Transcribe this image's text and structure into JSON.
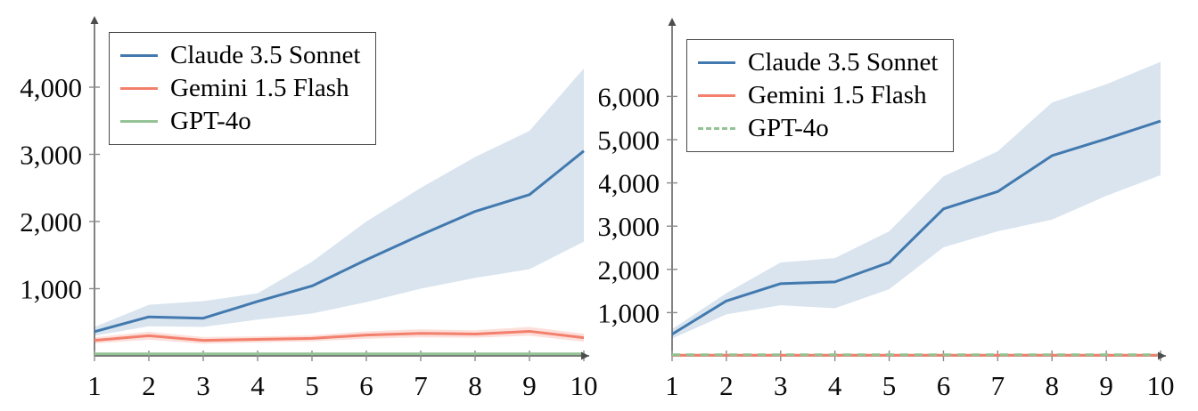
{
  "chart_data": [
    {
      "type": "line",
      "title": "",
      "xlabel": "",
      "ylabel": "",
      "legend_position": "top-left",
      "grid": false,
      "x": [
        1,
        2,
        3,
        4,
        5,
        6,
        7,
        8,
        9,
        10
      ],
      "x_ticks": [
        "1",
        "2",
        "3",
        "4",
        "5",
        "6",
        "7",
        "8",
        "9",
        "10"
      ],
      "y_ticks": [
        "1,000",
        "2,000",
        "3,000",
        "4,000"
      ],
      "y_tick_values": [
        1000,
        2000,
        3000,
        4000
      ],
      "ylim": [
        0,
        5000
      ],
      "legend": [
        {
          "label": "Claude 3.5 Sonnet",
          "color": "#4279ae",
          "dash": "solid"
        },
        {
          "label": "Gemini 1.5 Flash",
          "color": "#f3806d",
          "dash": "solid"
        },
        {
          "label": "GPT-4o",
          "color": "#93c294",
          "dash": "solid"
        }
      ],
      "series": [
        {
          "name": "Claude 3.5 Sonnet",
          "color": "#4279ae",
          "dash": "solid",
          "values": [
            360,
            580,
            560,
            810,
            1040,
            1430,
            1800,
            2150,
            2400,
            3050
          ],
          "band_lower": [
            300,
            440,
            430,
            540,
            630,
            800,
            1000,
            1160,
            1290,
            1700
          ],
          "band_upper": [
            430,
            760,
            815,
            930,
            1400,
            2000,
            2500,
            2960,
            3350,
            4280
          ],
          "band_color": "rgba(66,121,174,0.20)"
        },
        {
          "name": "Gemini 1.5 Flash",
          "color": "#f3806d",
          "dash": "solid",
          "values": [
            230,
            300,
            230,
            245,
            260,
            310,
            335,
            325,
            365,
            270
          ],
          "band_lower": [
            185,
            240,
            180,
            200,
            215,
            255,
            275,
            270,
            300,
            210
          ],
          "band_upper": [
            275,
            360,
            280,
            290,
            305,
            365,
            395,
            380,
            430,
            330
          ],
          "band_color": "rgba(243,128,109,0.25)"
        },
        {
          "name": "GPT-4o",
          "color": "#93c294",
          "dash": "solid",
          "values": [
            30,
            30,
            30,
            30,
            30,
            30,
            30,
            30,
            30,
            30
          ]
        }
      ]
    },
    {
      "type": "line",
      "title": "",
      "xlabel": "",
      "ylabel": "",
      "legend_position": "top-left",
      "grid": false,
      "x": [
        1,
        2,
        3,
        4,
        5,
        6,
        7,
        8,
        9,
        10
      ],
      "x_ticks": [
        "1",
        "2",
        "3",
        "4",
        "5",
        "6",
        "7",
        "8",
        "9",
        "10"
      ],
      "y_ticks": [
        "1,000",
        "2,000",
        "3,000",
        "4,000",
        "5,000",
        "6,000"
      ],
      "y_tick_values": [
        1000,
        2000,
        3000,
        4000,
        5000,
        6000
      ],
      "ylim": [
        0,
        7400
      ],
      "legend": [
        {
          "label": "Claude 3.5 Sonnet",
          "color": "#4279ae",
          "dash": "solid"
        },
        {
          "label": "Gemini 1.5 Flash",
          "color": "#f3806d",
          "dash": "solid"
        },
        {
          "label": "GPT-4o",
          "color": "#93c294",
          "dash": "dashed"
        }
      ],
      "series": [
        {
          "name": "Claude 3.5 Sonnet",
          "color": "#4279ae",
          "dash": "solid",
          "values": [
            500,
            1270,
            1670,
            1710,
            2160,
            3400,
            3800,
            4630,
            5020,
            5430
          ],
          "band_lower": [
            400,
            960,
            1170,
            1100,
            1540,
            2510,
            2880,
            3150,
            3700,
            4180
          ],
          "band_upper": [
            620,
            1450,
            2160,
            2260,
            2880,
            4150,
            4730,
            5860,
            6280,
            6800
          ],
          "band_color": "rgba(66,121,174,0.20)"
        },
        {
          "name": "Gemini 1.5 Flash",
          "color": "#f3806d",
          "dash": "solid",
          "values": [
            15,
            15,
            15,
            15,
            15,
            15,
            15,
            15,
            15,
            15
          ]
        },
        {
          "name": "GPT-4o",
          "color": "#93c294",
          "dash": "dashed",
          "values": [
            25,
            25,
            25,
            25,
            25,
            25,
            25,
            25,
            25,
            25
          ]
        }
      ]
    }
  ],
  "colors": {
    "axis": "#4d4d4d",
    "tick": "#8a8a8a",
    "claude_blue": "#4279ae",
    "gemini_salmon": "#f3806d",
    "gpt4o_green": "#93c294"
  }
}
